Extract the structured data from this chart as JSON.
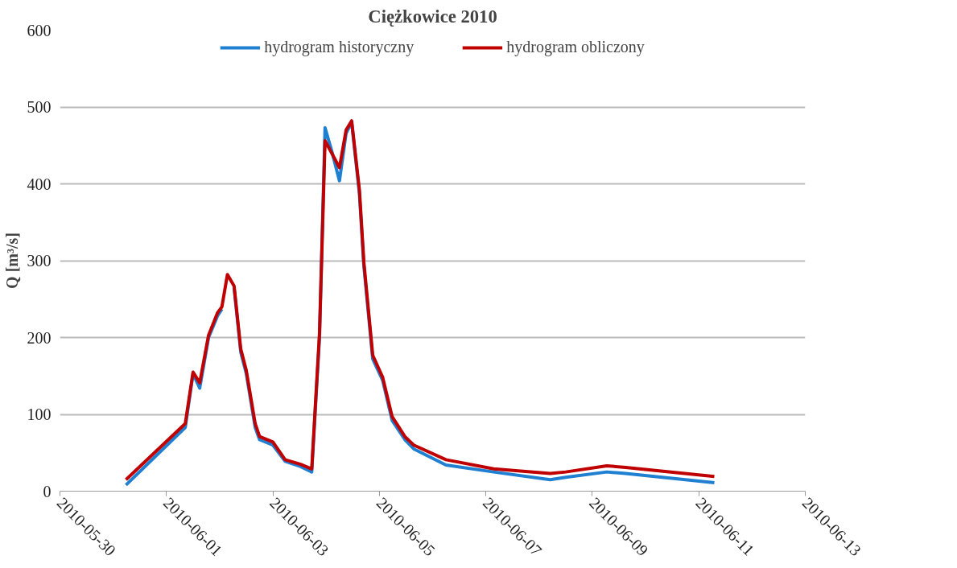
{
  "chart_data": {
    "type": "line",
    "title": "Ciężkowice 2010",
    "ylabel": "Q [m³/s]",
    "x": [
      "2010-05-31T05:45",
      "2010-06-01T08:30",
      "2010-06-01T12:00",
      "2010-06-01T15:00",
      "2010-06-01T19:00",
      "2010-06-01T23:00",
      "2010-06-02T01:00",
      "2010-06-02T03:30",
      "2010-06-02T06:30",
      "2010-06-02T09:30",
      "2010-06-02T12:00",
      "2010-06-02T16:00",
      "2010-06-02T18:00",
      "2010-06-03T00:00",
      "2010-06-03T05:30",
      "2010-06-03T12:30",
      "2010-06-03T17:30",
      "2010-06-03T21:00",
      "2010-06-03T23:30",
      "2010-06-04T02:30",
      "2010-06-04T06:00",
      "2010-06-04T09:00",
      "2010-06-04T11:30",
      "2010-06-04T15:00",
      "2010-06-04T17:00",
      "2010-06-04T21:00",
      "2010-06-05T01:30",
      "2010-06-05T05:45",
      "2010-06-05T11:30",
      "2010-06-05T15:30",
      "2010-06-06T06:00",
      "2010-06-07T03:30",
      "2010-06-08T05:00",
      "2010-06-08T12:00",
      "2010-06-09T06:30",
      "2010-06-09T15:00",
      "2010-06-11T07:00"
    ],
    "series": [
      {
        "name": "hydrogram historyczny",
        "color": "#1f7fd0",
        "values": [
          8,
          83,
          153,
          134,
          200,
          228,
          237,
          null,
          265,
          181,
          153,
          83,
          67,
          60,
          39,
          32,
          25,
          200,
          473,
          443,
          404,
          466,
          480,
          387,
          293,
          172,
          144,
          92,
          67,
          55,
          34,
          25,
          15,
          18,
          25,
          23,
          11
        ]
      },
      {
        "name": "hydrogram obliczony",
        "color": "#c00000",
        "values": [
          15,
          88,
          155,
          141,
          203,
          232,
          240,
          282,
          267,
          185,
          157,
          88,
          71,
          64,
          41,
          35,
          29,
          205,
          456,
          440,
          421,
          470,
          482,
          392,
          298,
          177,
          148,
          97,
          71,
          60,
          41,
          29,
          23,
          25,
          33,
          31,
          19
        ]
      }
    ],
    "xlim": [
      "2010-05-30",
      "2010-06-13"
    ],
    "xticks": [
      "2010-05-30",
      "2010-06-01",
      "2010-06-03",
      "2010-06-05",
      "2010-06-07",
      "2010-06-09",
      "2010-06-11",
      "2010-06-13"
    ],
    "ylim": [
      0,
      600
    ],
    "yticks": [
      0,
      100,
      200,
      300,
      400,
      500,
      600
    ],
    "grid": "y",
    "legend": "top",
    "line_style": "solid",
    "marker": "none"
  }
}
